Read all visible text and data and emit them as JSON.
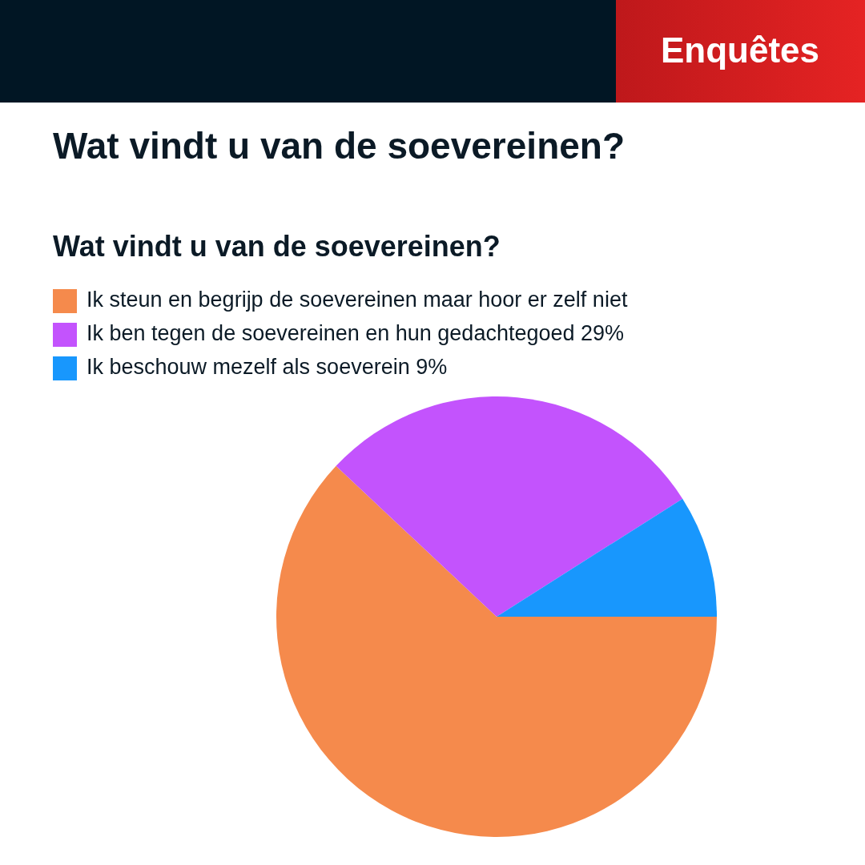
{
  "chart_data": {
    "type": "pie",
    "title": "Wat vindt u van de soevereinen?",
    "subtitle": "Wat vindt u van de soevereinen?",
    "categories": [
      "Ik steun en begrijp de soevereinen maar hoor er zelf niet",
      "Ik ben tegen de soevereinen en hun gedachtegoed",
      "Ik beschouw mezelf als soeverein"
    ],
    "values": [
      62,
      29,
      9
    ],
    "colors": [
      "#f58a4c",
      "#c353fd",
      "#1897fd"
    ],
    "value_labels": [
      null,
      "29%",
      "9%"
    ],
    "legend": "top left",
    "annotations": [
      "Enquêtes"
    ]
  }
}
